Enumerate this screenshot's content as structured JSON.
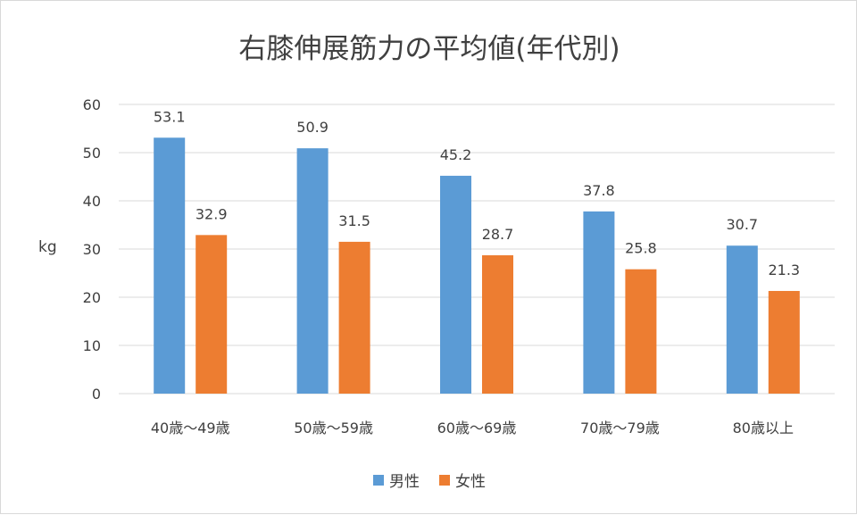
{
  "chart_data": {
    "type": "bar",
    "title": "右膝伸展筋力の平均値(年代別)",
    "ylabel": "kg",
    "xlabel": "",
    "ylim": [
      0,
      60
    ],
    "yticks": [
      0,
      10,
      20,
      30,
      40,
      50,
      60
    ],
    "categories": [
      "40歳～49歳",
      "50歳～59歳",
      "60歳～69歳",
      "70歳～79歳",
      "80歳以上"
    ],
    "series": [
      {
        "name": "男性",
        "color": "#5b9bd5",
        "values": [
          53.1,
          50.9,
          45.2,
          37.8,
          30.7
        ]
      },
      {
        "name": "女性",
        "color": "#ed7d31",
        "values": [
          32.9,
          31.5,
          28.7,
          25.8,
          21.3
        ]
      }
    ],
    "grid": true,
    "legend_position": "bottom"
  }
}
